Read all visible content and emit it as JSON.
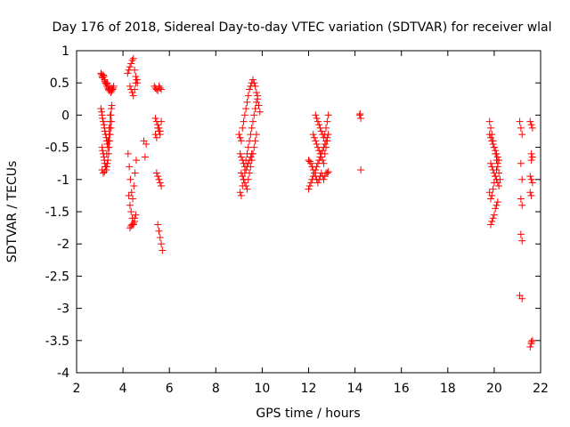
{
  "chart_data": {
    "type": "scatter",
    "title": "Day 176 of 2018, Sidereal Day-to-day VTEC variation (SDTVAR) for receiver wlal",
    "xlabel": "GPS time / hours",
    "ylabel": "SDTVAR / TECUs",
    "xlim": [
      2,
      22
    ],
    "ylim": [
      -4,
      1
    ],
    "xticks": [
      "2",
      "4",
      "6",
      "8",
      "10",
      "12",
      "14",
      "16",
      "18",
      "20",
      "22"
    ],
    "yticks": [
      "1",
      "0.5",
      "0",
      "-0.5",
      "-1",
      "-1.5",
      "-2",
      "-2.5",
      "-3",
      "-3.5",
      "-4"
    ],
    "grid": false,
    "marker": "+",
    "series": [
      {
        "name": "SDTVAR",
        "color": "#ff0000",
        "x": [
          3.05,
          3.08,
          3.1,
          3.12,
          3.15,
          3.18,
          3.2,
          3.22,
          3.25,
          3.28,
          3.3,
          3.32,
          3.35,
          3.38,
          3.4,
          3.42,
          3.45,
          3.48,
          3.5,
          3.52,
          3.55,
          3.58,
          3.6,
          3.05,
          3.08,
          3.1,
          3.12,
          3.15,
          3.18,
          3.2,
          3.22,
          3.25,
          3.28,
          3.3,
          3.32,
          3.35,
          3.38,
          3.4,
          3.42,
          3.45,
          3.48,
          3.5,
          3.52,
          3.1,
          3.12,
          3.15,
          3.18,
          3.2,
          3.22,
          3.25,
          3.28,
          3.3,
          3.32,
          3.35,
          3.38,
          3.4,
          3.42,
          3.45,
          3.48,
          3.5,
          3.1,
          3.15,
          3.2,
          3.25,
          3.3,
          3.35,
          3.4,
          3.45,
          4.2,
          4.25,
          4.3,
          4.35,
          4.4,
          4.45,
          4.5,
          4.55,
          4.6,
          4.62,
          4.3,
          4.35,
          4.4,
          4.45,
          4.5,
          4.55,
          4.6,
          4.22,
          4.27,
          4.32,
          4.37,
          4.42,
          4.47,
          4.52,
          4.57,
          4.25,
          4.3,
          4.35,
          4.4,
          4.45,
          4.5,
          4.55,
          4.3,
          4.35,
          4.4,
          4.45,
          4.5,
          4.9,
          4.95,
          5.0,
          5.35,
          5.4,
          5.45,
          5.5,
          5.55,
          5.6,
          5.65,
          5.4,
          5.45,
          5.5,
          5.55,
          5.6,
          5.65,
          5.4,
          5.45,
          5.5,
          5.55,
          5.6,
          5.45,
          5.5,
          5.55,
          5.6,
          5.65,
          5.5,
          5.55,
          5.6,
          5.65,
          5.7,
          9.0,
          9.05,
          9.1,
          9.15,
          9.2,
          9.25,
          9.3,
          9.35,
          9.4,
          9.45,
          9.5,
          9.55,
          9.6,
          9.65,
          9.7,
          9.75,
          9.8,
          9.85,
          9.9,
          9.05,
          9.1,
          9.15,
          9.2,
          9.25,
          9.3,
          9.35,
          9.4,
          9.45,
          9.5,
          9.55,
          9.6,
          9.65,
          9.7,
          9.75,
          9.8,
          9.1,
          9.15,
          9.2,
          9.25,
          9.3,
          9.35,
          9.4,
          9.45,
          9.5,
          9.55,
          9.6,
          9.65,
          9.7,
          9.75,
          9.05,
          9.1,
          9.15,
          9.2,
          9.25,
          9.3,
          9.35,
          9.4,
          9.45,
          9.5,
          9.55,
          12.0,
          12.05,
          12.1,
          12.15,
          12.2,
          12.25,
          12.3,
          12.35,
          12.4,
          12.45,
          12.5,
          12.55,
          12.6,
          12.65,
          12.7,
          12.75,
          12.8,
          12.85,
          12.2,
          12.25,
          12.3,
          12.35,
          12.4,
          12.45,
          12.5,
          12.55,
          12.6,
          12.65,
          12.7,
          12.75,
          12.8,
          12.3,
          12.35,
          12.4,
          12.45,
          12.5,
          12.55,
          12.6,
          12.65,
          12.7,
          12.75,
          12.8,
          12.85,
          12.0,
          12.05,
          12.1,
          12.15,
          12.2,
          12.25,
          12.3,
          12.35,
          12.4,
          12.45,
          12.5,
          12.55,
          12.6,
          12.65,
          12.7,
          12.75,
          12.8,
          12.85,
          14.2,
          14.22,
          14.25,
          14.25,
          19.8,
          19.85,
          19.9,
          19.95,
          20.0,
          20.05,
          20.1,
          20.15,
          20.2,
          20.25,
          19.8,
          19.85,
          19.9,
          19.95,
          20.0,
          20.05,
          20.1,
          20.15,
          20.2,
          19.85,
          19.9,
          19.95,
          20.0,
          20.05,
          20.1,
          20.15,
          20.2,
          19.8,
          19.85,
          19.9,
          19.95,
          20.0,
          20.05,
          20.1,
          20.15,
          19.85,
          19.9,
          19.95,
          20.0,
          20.05,
          20.1,
          20.15,
          21.1,
          21.15,
          21.2,
          21.15,
          21.2,
          21.15,
          21.2,
          21.15,
          21.2,
          21.1,
          21.2,
          21.55,
          21.6,
          21.65,
          21.6,
          21.65,
          21.6,
          21.55,
          21.6,
          21.65,
          21.55,
          21.6,
          21.65,
          21.6,
          21.55,
          21.6
        ],
        "y": [
          0.65,
          0.63,
          0.6,
          0.58,
          0.62,
          0.6,
          0.55,
          0.52,
          0.5,
          0.48,
          0.45,
          0.5,
          0.42,
          0.4,
          0.38,
          0.45,
          0.4,
          0.35,
          0.42,
          0.38,
          0.4,
          0.42,
          0.45,
          0.1,
          0.05,
          0.0,
          -0.05,
          -0.1,
          -0.15,
          -0.2,
          -0.25,
          -0.3,
          -0.35,
          -0.4,
          -0.45,
          -0.5,
          -0.4,
          -0.3,
          -0.2,
          -0.1,
          0.0,
          0.1,
          0.15,
          -0.5,
          -0.55,
          -0.6,
          -0.65,
          -0.7,
          -0.75,
          -0.8,
          -0.85,
          -0.8,
          -0.75,
          -0.7,
          -0.6,
          -0.5,
          -0.4,
          -0.3,
          -0.2,
          -0.1,
          -0.85,
          -0.9,
          -0.88,
          -0.8,
          -0.6,
          -0.4,
          -0.2,
          0.0,
          0.65,
          0.7,
          0.75,
          0.8,
          0.85,
          0.88,
          0.7,
          0.6,
          0.55,
          0.5,
          0.45,
          0.4,
          0.35,
          0.3,
          0.4,
          0.5,
          0.55,
          -0.6,
          -0.8,
          -1.0,
          -1.2,
          -1.3,
          -1.1,
          -0.9,
          -0.7,
          -1.25,
          -1.4,
          -1.5,
          -1.6,
          -1.7,
          -1.65,
          -1.55,
          -1.75,
          -1.72,
          -1.7,
          -1.68,
          -1.6,
          -0.4,
          -0.65,
          -0.45,
          0.45,
          0.42,
          0.4,
          0.38,
          0.45,
          0.42,
          0.4,
          -0.05,
          -0.1,
          -0.15,
          -0.2,
          -0.25,
          -0.1,
          -0.3,
          -0.35,
          -0.2,
          -0.25,
          -0.3,
          -0.9,
          -0.95,
          -1.0,
          -1.05,
          -1.1,
          -1.7,
          -1.8,
          -1.9,
          -2.0,
          -2.1,
          -0.3,
          -0.35,
          -0.4,
          -0.2,
          -0.1,
          0.0,
          0.1,
          0.2,
          0.3,
          0.4,
          0.45,
          0.5,
          0.55,
          0.5,
          0.45,
          0.35,
          0.25,
          0.15,
          0.05,
          -0.6,
          -0.65,
          -0.7,
          -0.75,
          -0.8,
          -0.7,
          -0.6,
          -0.5,
          -0.4,
          -0.3,
          -0.2,
          -0.1,
          0.0,
          0.1,
          0.2,
          0.3,
          -0.9,
          -0.95,
          -1.0,
          -1.05,
          -1.1,
          -1.15,
          -1.0,
          -0.9,
          -0.8,
          -0.7,
          -0.6,
          -0.5,
          -0.4,
          -0.3,
          -1.2,
          -1.25,
          -1.1,
          -1.0,
          -0.9,
          -0.85,
          -0.8,
          -0.75,
          -0.7,
          -0.65,
          -0.6,
          -0.7,
          -0.72,
          -0.75,
          -0.8,
          -0.85,
          -0.9,
          -0.95,
          -1.0,
          -1.05,
          -1.0,
          -0.95,
          -0.9,
          -0.95,
          -1.0,
          -0.95,
          -0.9,
          -0.9,
          -0.88,
          -0.3,
          -0.35,
          -0.4,
          -0.45,
          -0.5,
          -0.55,
          -0.6,
          -0.65,
          -0.7,
          -0.75,
          -0.6,
          -0.5,
          -0.4,
          0.0,
          -0.05,
          -0.1,
          -0.15,
          -0.2,
          -0.25,
          -0.3,
          -0.35,
          -0.3,
          -0.2,
          -0.1,
          0.0,
          -1.15,
          -1.1,
          -1.05,
          -1.0,
          -0.95,
          -0.9,
          -0.85,
          -0.8,
          -0.75,
          -0.7,
          -0.65,
          -0.6,
          -0.55,
          -0.5,
          -0.45,
          -0.4,
          -0.35,
          -0.3,
          0.0,
          0.02,
          -0.05,
          -0.85,
          -0.1,
          -0.2,
          -0.3,
          -0.4,
          -0.5,
          -0.6,
          -0.7,
          -0.8,
          -0.9,
          -1.0,
          -0.3,
          -0.35,
          -0.4,
          -0.45,
          -0.5,
          -0.55,
          -0.6,
          -0.65,
          -0.7,
          -0.75,
          -0.8,
          -0.85,
          -0.9,
          -0.95,
          -1.0,
          -1.05,
          -1.1,
          -1.2,
          -1.3,
          -1.25,
          -1.15,
          -1.05,
          -0.95,
          -0.85,
          -0.75,
          -1.7,
          -1.65,
          -1.6,
          -1.55,
          -1.45,
          -1.4,
          -1.35,
          -0.1,
          -0.2,
          -0.3,
          -0.75,
          -1.0,
          -1.3,
          -1.4,
          -1.85,
          -1.95,
          -2.8,
          -2.85,
          -0.1,
          -0.15,
          -0.2,
          -0.6,
          -0.65,
          -0.7,
          -0.95,
          -1.0,
          -1.05,
          -1.2,
          -1.25,
          -3.5,
          -3.55,
          -3.6,
          -3.52
        ]
      }
    ]
  }
}
